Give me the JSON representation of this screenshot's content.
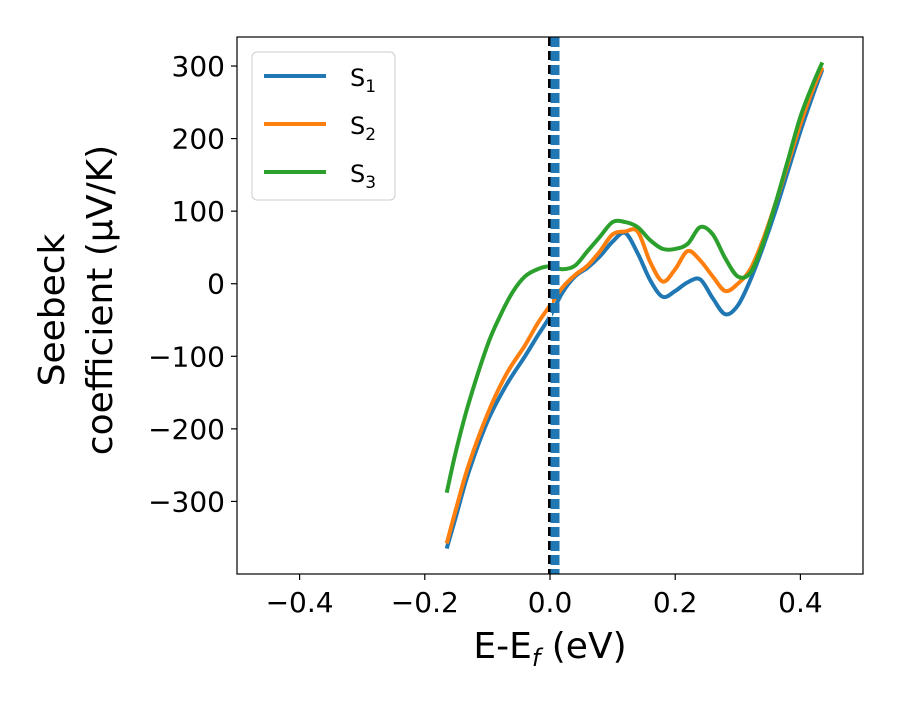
{
  "chart_data": {
    "type": "line",
    "title": "",
    "xlabel": {
      "main": "E-E",
      "sub": "f",
      "tail": " (eV)"
    },
    "ylabel": {
      "line1": "Seebeck",
      "line2": "coefficient  (μV/K)"
    },
    "xlim": [
      -0.5,
      0.5
    ],
    "ylim": [
      -400,
      340
    ],
    "xticks": [
      -0.4,
      -0.2,
      0.0,
      0.2,
      0.4
    ],
    "xtick_labels": [
      "−0.4",
      "−0.2",
      "0.0",
      "0.2",
      "0.4"
    ],
    "yticks": [
      300,
      200,
      100,
      0,
      -100,
      -200,
      -300
    ],
    "ytick_labels": [
      "300",
      "200",
      "100",
      "0",
      "−100",
      "−200",
      "−300"
    ],
    "grid": false,
    "legend": {
      "position": "upper-left",
      "entries": [
        {
          "base": "S",
          "sub": "1",
          "color": "#1f77b4"
        },
        {
          "base": "S",
          "sub": "2",
          "color": "#ff7f0e"
        },
        {
          "base": "S",
          "sub": "3",
          "color": "#2ca02c"
        }
      ]
    },
    "vlines": [
      {
        "x": 0.0,
        "style": "dashed-black-white",
        "color": "#000000"
      },
      {
        "x": 0.008,
        "style": "dashed-thick",
        "color": "#1f77b4"
      }
    ],
    "series": [
      {
        "name": "S₁",
        "color": "#1f77b4",
        "x": [
          -0.165,
          -0.15,
          -0.13,
          -0.1,
          -0.07,
          -0.04,
          -0.02,
          0.0,
          0.02,
          0.04,
          0.06,
          0.08,
          0.1,
          0.12,
          0.14,
          0.16,
          0.18,
          0.2,
          0.22,
          0.24,
          0.26,
          0.28,
          0.3,
          0.32,
          0.34,
          0.36,
          0.38,
          0.4,
          0.42,
          0.435
        ],
        "y": [
          -365,
          -320,
          -260,
          -190,
          -140,
          -100,
          -72,
          -45,
          -12,
          10,
          22,
          38,
          58,
          70,
          42,
          5,
          -18,
          -10,
          2,
          6,
          -20,
          -42,
          -30,
          5,
          50,
          100,
          155,
          210,
          260,
          295
        ]
      },
      {
        "name": "S₂",
        "color": "#ff7f0e",
        "x": [
          -0.165,
          -0.15,
          -0.13,
          -0.1,
          -0.07,
          -0.04,
          -0.02,
          0.0,
          0.02,
          0.04,
          0.06,
          0.08,
          0.1,
          0.12,
          0.14,
          0.16,
          0.18,
          0.2,
          0.22,
          0.24,
          0.26,
          0.28,
          0.3,
          0.32,
          0.34,
          0.36,
          0.38,
          0.4,
          0.42,
          0.435
        ],
        "y": [
          -358,
          -310,
          -250,
          -180,
          -125,
          -85,
          -55,
          -30,
          -5,
          12,
          25,
          45,
          68,
          72,
          72,
          30,
          3,
          20,
          45,
          32,
          10,
          -10,
          0,
          20,
          60,
          110,
          165,
          220,
          268,
          298
        ]
      },
      {
        "name": "S₃",
        "color": "#2ca02c",
        "x": [
          -0.165,
          -0.15,
          -0.13,
          -0.1,
          -0.08,
          -0.06,
          -0.04,
          -0.02,
          0.0,
          0.02,
          0.04,
          0.06,
          0.08,
          0.1,
          0.12,
          0.14,
          0.16,
          0.18,
          0.2,
          0.22,
          0.24,
          0.26,
          0.28,
          0.3,
          0.32,
          0.34,
          0.36,
          0.38,
          0.4,
          0.42,
          0.435
        ],
        "y": [
          -288,
          -230,
          -165,
          -85,
          -45,
          -12,
          10,
          20,
          24,
          20,
          25,
          45,
          65,
          85,
          85,
          78,
          60,
          48,
          48,
          55,
          78,
          68,
          35,
          10,
          15,
          55,
          110,
          170,
          230,
          275,
          305
        ]
      }
    ]
  }
}
